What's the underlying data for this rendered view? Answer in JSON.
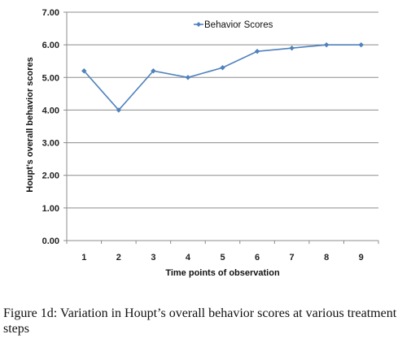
{
  "chart_data": {
    "type": "line",
    "x": [
      1,
      2,
      3,
      4,
      5,
      6,
      7,
      8,
      9
    ],
    "series": [
      {
        "name": "Behavior Scores",
        "values": [
          5.2,
          4.0,
          5.2,
          5.0,
          5.3,
          5.8,
          5.9,
          6.0,
          6.0
        ],
        "color": "#4f81bd"
      }
    ],
    "y_ticks": [
      "0.00",
      "1.00",
      "2.00",
      "3.00",
      "4.00",
      "5.00",
      "6.00",
      "7.00"
    ],
    "x_ticks": [
      "1",
      "2",
      "3",
      "4",
      "5",
      "6",
      "7",
      "8",
      "9"
    ],
    "ylim": [
      0,
      7
    ],
    "xlabel": "Time points of observation",
    "ylabel": "Houpt’s overall behavior scores",
    "legend": "top-center",
    "grid": "horizontal"
  },
  "caption": "Figure 1d: Variation in Houpt’s overall behavior scores at various treatment steps"
}
